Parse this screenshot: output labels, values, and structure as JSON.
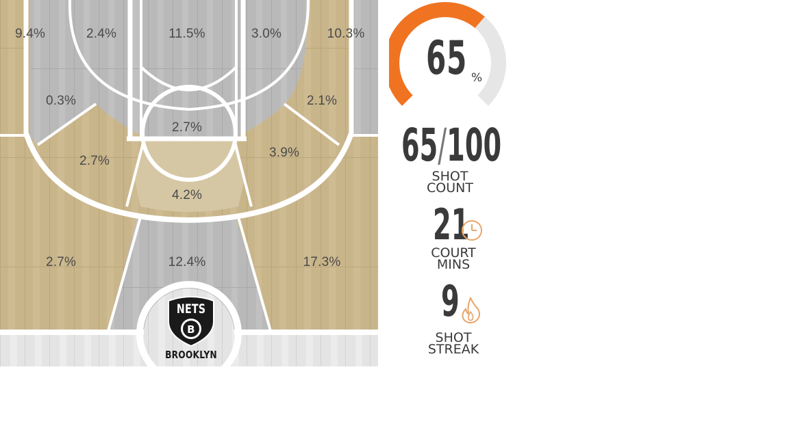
{
  "court": {
    "team_logo": {
      "name": "NETS",
      "letter": "B",
      "city": "BROOKLYN"
    },
    "zones": [
      {
        "id": "left-corner-deep",
        "pct": "9.4%"
      },
      {
        "id": "left-wing-mid",
        "pct": "2.4%"
      },
      {
        "id": "top-paint",
        "pct": "11.5%"
      },
      {
        "id": "right-wing-mid",
        "pct": "3.0%"
      },
      {
        "id": "right-corner-deep",
        "pct": "10.3%"
      },
      {
        "id": "left-baseline-mid",
        "pct": "0.3%"
      },
      {
        "id": "right-baseline-mid",
        "pct": "2.1%"
      },
      {
        "id": "free-throw-circle",
        "pct": "2.7%"
      },
      {
        "id": "left-elbow",
        "pct": "2.7%"
      },
      {
        "id": "right-elbow",
        "pct": "3.9%"
      },
      {
        "id": "top-key",
        "pct": "4.2%"
      },
      {
        "id": "left-three",
        "pct": "2.7%"
      },
      {
        "id": "center-three",
        "pct": "12.4%"
      },
      {
        "id": "right-three",
        "pct": "17.3%"
      }
    ],
    "colors": {
      "tan": "#c8b487",
      "gray": "#b7b7b7",
      "line": "#ffffff"
    }
  },
  "stats": {
    "accuracy": {
      "value": "65",
      "unit": "%",
      "fraction": 0.65,
      "accent": "#f07322",
      "track": "#e6e6e6"
    },
    "shot_count": {
      "made": "65",
      "separator": "/",
      "attempted": "100",
      "label_line1": "SHOT",
      "label_line2": "COUNT"
    },
    "court_mins": {
      "value": "21",
      "icon": "clock-icon",
      "label_line1": "COURT",
      "label_line2": "MINS"
    },
    "shot_streak": {
      "value": "9",
      "icon": "flame-icon",
      "label_line1": "SHOT",
      "label_line2": "STREAK"
    },
    "icon_color": "#e8a56a"
  }
}
